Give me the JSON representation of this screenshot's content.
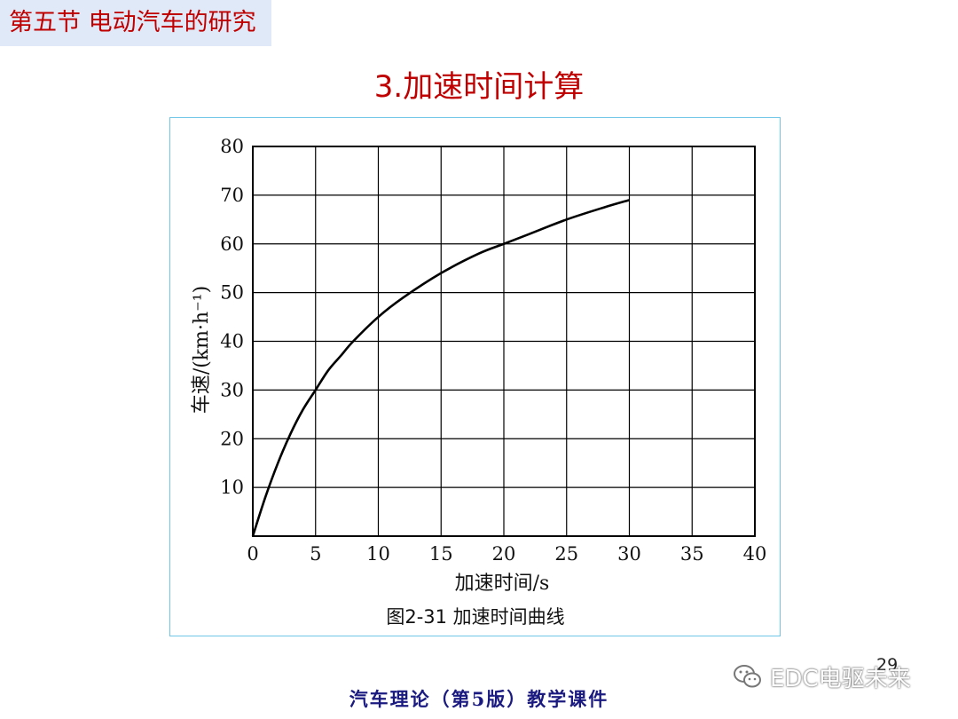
{
  "header": {
    "section": "第五节  电动汽车的研究"
  },
  "slide": {
    "title": "3.加速时间计算"
  },
  "figure": {
    "caption": "图2-31   加速时间曲线"
  },
  "page": {
    "number": "29"
  },
  "watermark": {
    "text": "EDC电驱未来",
    "icon": "wechat-icon"
  },
  "footer": {
    "text": "汽车理论（第5版）教学课件"
  },
  "chart_data": {
    "type": "line",
    "title": "",
    "xlabel": "加速时间/s",
    "ylabel": "车速/(km·h⁻¹)",
    "xlim": [
      0,
      40
    ],
    "ylim": [
      0,
      80
    ],
    "xticks": [
      0,
      5,
      10,
      15,
      20,
      25,
      30,
      35,
      40
    ],
    "yticks": [
      0,
      10,
      20,
      30,
      40,
      50,
      60,
      70,
      80
    ],
    "grid": true,
    "series": [
      {
        "x": [
          0,
          1,
          2,
          3,
          4,
          5,
          6,
          7,
          8,
          10,
          12,
          15,
          18,
          20,
          22,
          25,
          28,
          30
        ],
        "y": [
          0,
          8,
          15,
          21,
          26,
          30,
          34,
          37,
          40,
          45,
          49,
          54,
          58,
          60,
          62,
          65,
          67.5,
          69
        ],
        "color": "#000000"
      }
    ]
  }
}
